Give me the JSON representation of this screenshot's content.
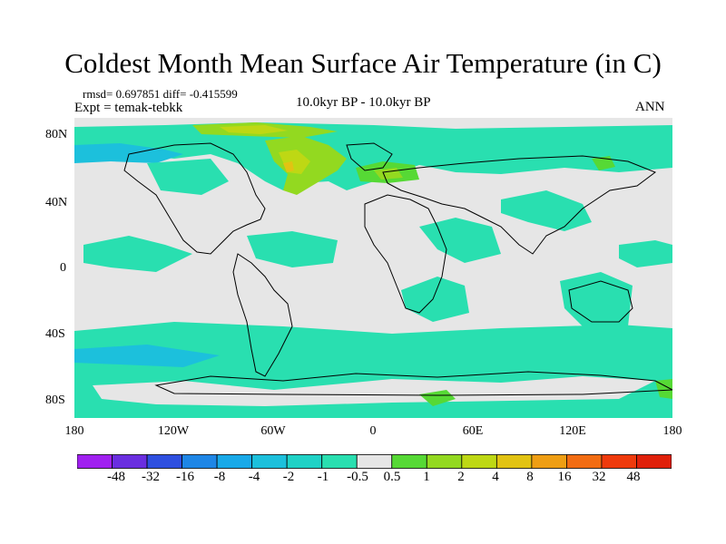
{
  "title": "Coldest Month Mean Surface Air Temperature (in C)",
  "stats": "rmsd= 0.697851 diff= -0.415599",
  "experiment": "Expt = temak-tebkk",
  "period": "10.0kyr BP - 10.0kyr BP",
  "season": "ANN",
  "lat_labels": [
    "80N",
    "40N",
    "0",
    "40S",
    "80S"
  ],
  "lon_labels": [
    "180",
    "120W",
    "60W",
    "0",
    "60E",
    "120E",
    "180"
  ],
  "colorbar": {
    "labels": [
      "-48",
      "-32",
      "-16",
      "-8",
      "-4",
      "-2",
      "-1",
      "-0.5",
      "0.5",
      "1",
      "2",
      "4",
      "8",
      "16",
      "32",
      "48"
    ],
    "colors": [
      "#a020f0",
      "#6a2ee0",
      "#2e4fe0",
      "#1e86e6",
      "#19a9e8",
      "#1cc0dc",
      "#1fd2c6",
      "#29dfb0",
      "#e6e6e6",
      "#56d935",
      "#93d920",
      "#bed814",
      "#e2c312",
      "#ef9e13",
      "#f26c12",
      "#ef3a0c",
      "#e0200a"
    ]
  },
  "map_colors": {
    "neutral": "#e6e6e6",
    "cool": "#29dfb0",
    "cooler": "#1fd2c6",
    "coolest": "#1cc0dc",
    "warm": "#56d935",
    "warmer": "#93d920",
    "warmest": "#bed814",
    "hot": "#e2c312"
  }
}
